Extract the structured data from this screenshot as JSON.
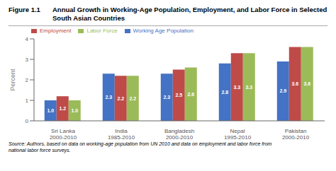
{
  "chart_data": {
    "type": "bar",
    "title": "Annual Growth in Working-Age Population, Employment, and Labor Force in Selected\nSouth Asian Countries",
    "annotations": [
      "Figure 1.1",
      "Source: Authors, based on data on working-age population from UN 2010 and data on employment and labor force from\nnational labor force surveys."
    ],
    "categories": [
      "Sri Lanka\n2000-2010",
      "India\n1985-2010",
      "Bangladesh\n2000-2010",
      "Nepal\n1995-2010",
      "Pakistan\n2000-2010"
    ],
    "series": [
      {
        "name": "Working Age Population",
        "color": "#4472C4",
        "values": [
          1.0,
          2.3,
          2.3,
          2.8,
          2.9
        ],
        "value_labels": [
          "1.0",
          "2.3",
          "2.3",
          "2.8",
          "2.9"
        ]
      },
      {
        "name": "Employment",
        "color": "#BE4B48",
        "values": [
          1.2,
          2.2,
          2.5,
          3.3,
          3.6
        ],
        "value_labels": [
          "1.2",
          "2.2",
          "2.5",
          "3.3",
          "3.6"
        ]
      },
      {
        "name": "Labor Force",
        "color": "#9BBB59",
        "values": [
          1.0,
          2.2,
          2.6,
          3.3,
          3.6
        ],
        "value_labels": [
          "1.0",
          "2.2",
          "2.6",
          "3.3",
          "3.6"
        ]
      }
    ],
    "ylabel": "Percent",
    "ylim": [
      0,
      4
    ],
    "yticks": [
      0,
      1,
      2,
      3,
      4
    ],
    "legend": "top",
    "grid": false,
    "data_labels": true
  }
}
